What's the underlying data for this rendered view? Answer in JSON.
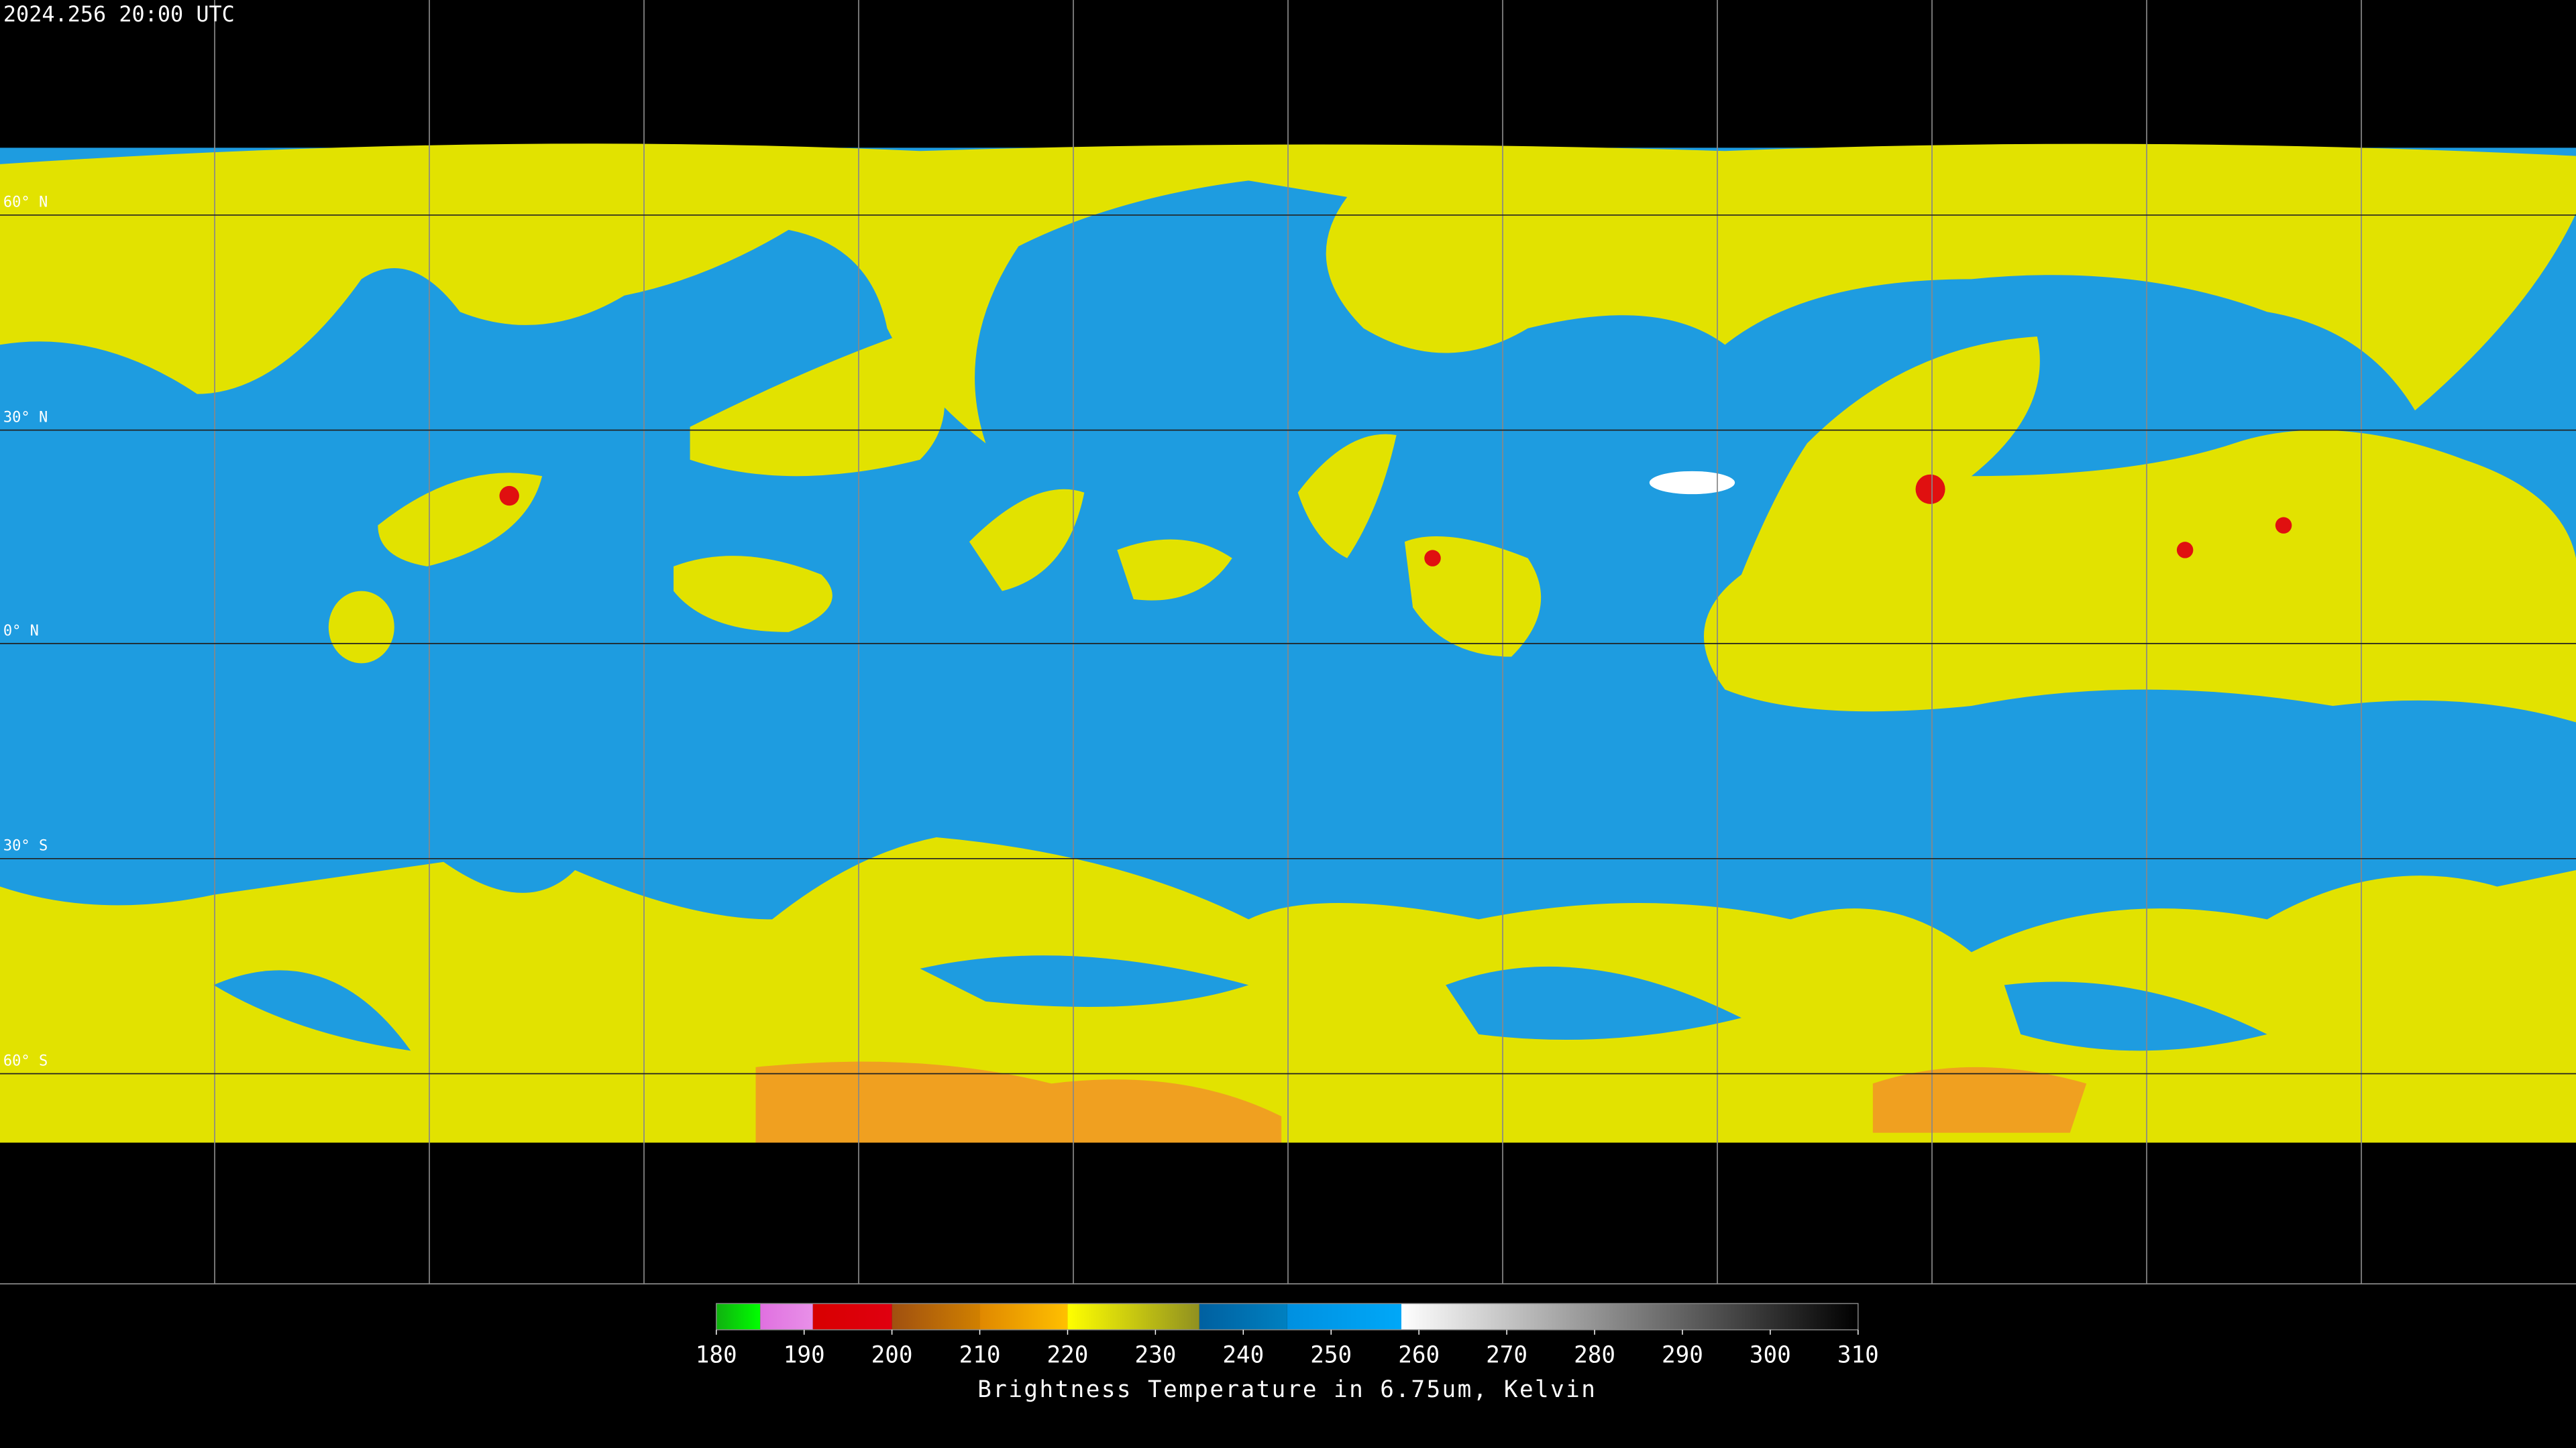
{
  "header": {
    "title": "2024.256 20:00 UTC"
  },
  "map": {
    "lat_labels": [
      "60° N",
      "30° N",
      "0° N",
      "30° S",
      "60° S"
    ]
  },
  "colorbar": {
    "lim": [
      180,
      310
    ],
    "ticks": [
      180,
      190,
      200,
      210,
      220,
      230,
      240,
      250,
      260,
      270,
      280,
      290,
      300,
      310
    ],
    "label": "Brightness Temperature in 6.75um, Kelvin",
    "segments": [
      {
        "from": 180,
        "to": 185,
        "colors": [
          "#10b010",
          "#00ff00"
        ]
      },
      {
        "from": 185,
        "to": 191,
        "colors": [
          "#e070e0",
          "#e890e8"
        ]
      },
      {
        "from": 191,
        "to": 200,
        "colors": [
          "#d80000",
          "#e00010"
        ]
      },
      {
        "from": 200,
        "to": 210,
        "colors": [
          "#a05010",
          "#d08000"
        ]
      },
      {
        "from": 210,
        "to": 220,
        "colors": [
          "#e08800",
          "#ffc000"
        ]
      },
      {
        "from": 220,
        "to": 235,
        "colors": [
          "#ffff00",
          "#909020"
        ]
      },
      {
        "from": 235,
        "to": 245,
        "colors": [
          "#0060a0",
          "#0080c0"
        ]
      },
      {
        "from": 245,
        "to": 258,
        "colors": [
          "#0090e0",
          "#00a8f8"
        ]
      },
      {
        "from": 258,
        "to": 310,
        "colors": [
          "#ffffff",
          "#000000"
        ]
      }
    ]
  }
}
